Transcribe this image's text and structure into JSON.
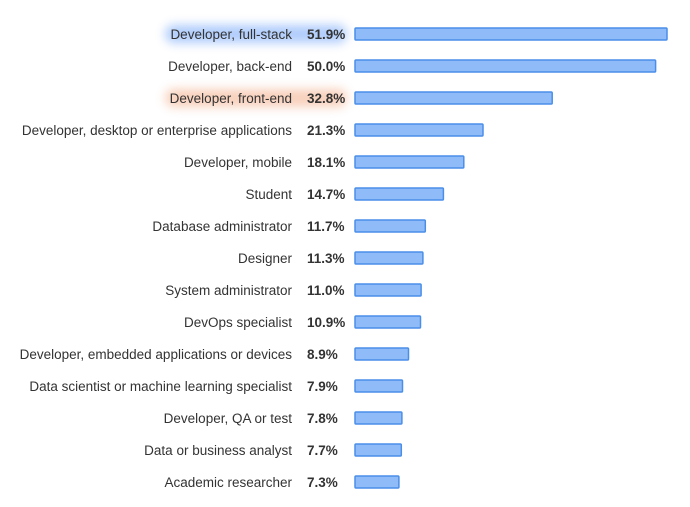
{
  "chart_data": {
    "type": "bar",
    "orientation": "horizontal",
    "categories": [
      "Developer, full-stack",
      "Developer, back-end",
      "Developer, front-end",
      "Developer, desktop or enterprise applications",
      "Developer, mobile",
      "Student",
      "Database administrator",
      "Designer",
      "System administrator",
      "DevOps specialist",
      "Developer, embedded applications or devices",
      "Data scientist or machine learning specialist",
      "Developer, QA or test",
      "Data or business analyst",
      "Academic researcher"
    ],
    "values": [
      51.9,
      50.0,
      32.8,
      21.3,
      18.1,
      14.7,
      11.7,
      11.3,
      11.0,
      10.9,
      8.9,
      7.9,
      7.8,
      7.7,
      7.3
    ],
    "value_labels": [
      "51.9%",
      "50.0%",
      "32.8%",
      "21.3%",
      "18.1%",
      "14.7%",
      "11.7%",
      "11.3%",
      "11.0%",
      "10.9%",
      "8.9%",
      "7.9%",
      "7.8%",
      "7.7%",
      "7.3%"
    ],
    "highlights": [
      {
        "index": 0,
        "color": "#4f8ff7"
      },
      {
        "index": 2,
        "color": "#f0986a"
      }
    ],
    "title": "",
    "xlabel": "",
    "ylabel": "",
    "xlim": [
      0,
      51.9
    ],
    "grid": false,
    "legend": "none",
    "colors": {
      "bar_fill": "#8fbbf9",
      "bar_stroke": "#4a8ee8",
      "text": "#333333"
    }
  }
}
